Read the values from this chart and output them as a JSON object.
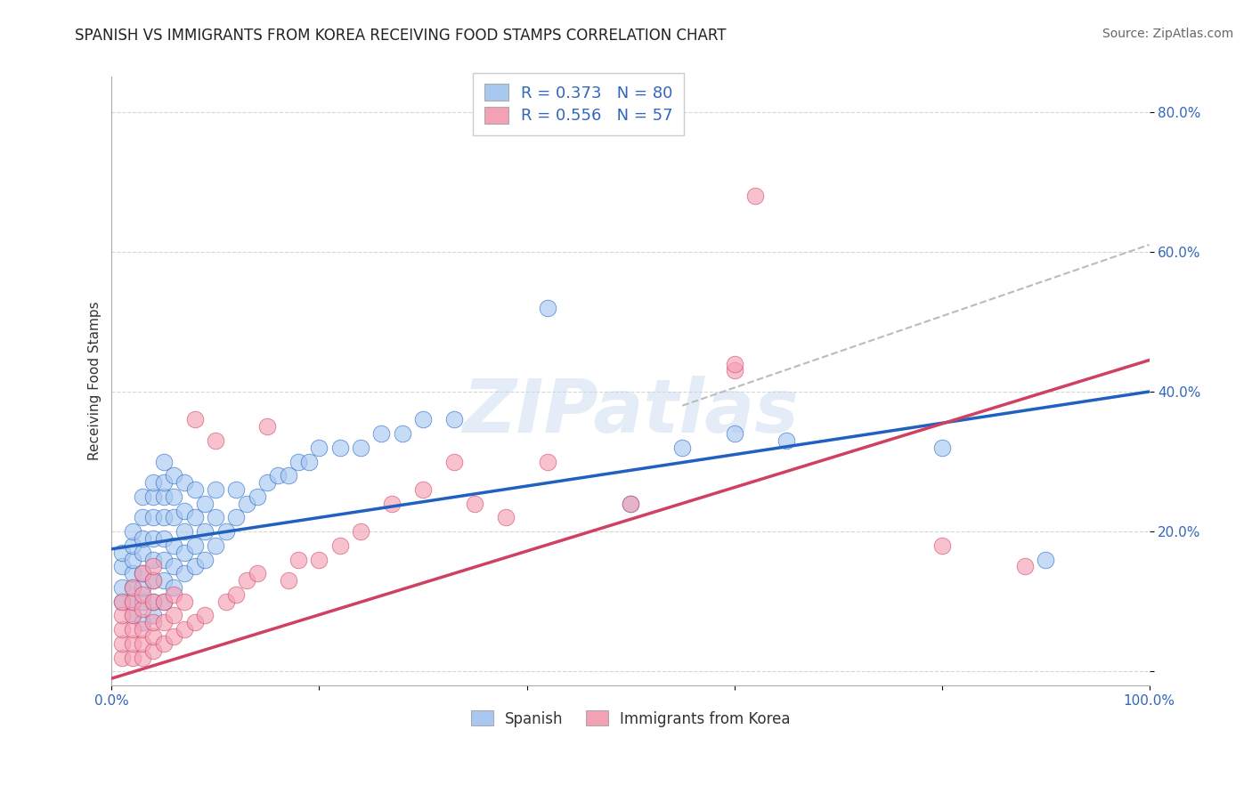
{
  "title": "SPANISH VS IMMIGRANTS FROM KOREA RECEIVING FOOD STAMPS CORRELATION CHART",
  "source": "Source: ZipAtlas.com",
  "ylabel": "Receiving Food Stamps",
  "x_min": 0.0,
  "x_max": 1.0,
  "y_min": -0.02,
  "y_max": 0.85,
  "x_ticks": [
    0.0,
    0.2,
    0.4,
    0.6,
    0.8,
    1.0
  ],
  "x_tick_labels": [
    "0.0%",
    "",
    "",
    "",
    "",
    "100.0%"
  ],
  "y_ticks": [
    0.0,
    0.2,
    0.4,
    0.6,
    0.8
  ],
  "y_tick_labels": [
    "",
    "20.0%",
    "40.0%",
    "60.0%",
    "80.0%"
  ],
  "grid_color": "#cccccc",
  "background_color": "#ffffff",
  "legend_R1": "R = 0.373",
  "legend_N1": "N = 80",
  "legend_R2": "R = 0.556",
  "legend_N2": "N = 57",
  "series1_color": "#a8c8f0",
  "series2_color": "#f4a0b5",
  "line1_color": "#2060c0",
  "line2_color": "#d04060",
  "dash_color": "#bbbbbb",
  "watermark": "ZIPatlas",
  "title_fontsize": 12,
  "label_fontsize": 11,
  "tick_fontsize": 11,
  "source_fontsize": 10,
  "blue_line_x0": 0.0,
  "blue_line_y0": 0.175,
  "blue_line_x1": 1.0,
  "blue_line_y1": 0.4,
  "pink_line_x0": 0.0,
  "pink_line_y0": -0.01,
  "pink_line_x1": 1.0,
  "pink_line_y1": 0.445,
  "dash_line_x0": 0.55,
  "dash_line_y0": 0.38,
  "dash_line_x1": 1.0,
  "dash_line_y1": 0.61,
  "spanish_x": [
    0.01,
    0.01,
    0.01,
    0.01,
    0.02,
    0.02,
    0.02,
    0.02,
    0.02,
    0.02,
    0.02,
    0.03,
    0.03,
    0.03,
    0.03,
    0.03,
    0.03,
    0.03,
    0.03,
    0.04,
    0.04,
    0.04,
    0.04,
    0.04,
    0.04,
    0.04,
    0.04,
    0.05,
    0.05,
    0.05,
    0.05,
    0.05,
    0.05,
    0.05,
    0.05,
    0.06,
    0.06,
    0.06,
    0.06,
    0.06,
    0.06,
    0.07,
    0.07,
    0.07,
    0.07,
    0.07,
    0.08,
    0.08,
    0.08,
    0.08,
    0.09,
    0.09,
    0.09,
    0.1,
    0.1,
    0.1,
    0.11,
    0.12,
    0.12,
    0.13,
    0.14,
    0.15,
    0.16,
    0.17,
    0.18,
    0.19,
    0.2,
    0.22,
    0.24,
    0.26,
    0.28,
    0.3,
    0.33,
    0.42,
    0.5,
    0.55,
    0.6,
    0.65,
    0.8,
    0.9
  ],
  "spanish_y": [
    0.1,
    0.12,
    0.15,
    0.17,
    0.08,
    0.1,
    0.12,
    0.14,
    0.16,
    0.18,
    0.2,
    0.07,
    0.1,
    0.12,
    0.14,
    0.17,
    0.19,
    0.22,
    0.25,
    0.08,
    0.1,
    0.13,
    0.16,
    0.19,
    0.22,
    0.25,
    0.27,
    0.1,
    0.13,
    0.16,
    0.19,
    0.22,
    0.25,
    0.27,
    0.3,
    0.12,
    0.15,
    0.18,
    0.22,
    0.25,
    0.28,
    0.14,
    0.17,
    0.2,
    0.23,
    0.27,
    0.15,
    0.18,
    0.22,
    0.26,
    0.16,
    0.2,
    0.24,
    0.18,
    0.22,
    0.26,
    0.2,
    0.22,
    0.26,
    0.24,
    0.25,
    0.27,
    0.28,
    0.28,
    0.3,
    0.3,
    0.32,
    0.32,
    0.32,
    0.34,
    0.34,
    0.36,
    0.36,
    0.52,
    0.24,
    0.32,
    0.34,
    0.33,
    0.32,
    0.16
  ],
  "korea_x": [
    0.01,
    0.01,
    0.01,
    0.01,
    0.01,
    0.02,
    0.02,
    0.02,
    0.02,
    0.02,
    0.02,
    0.03,
    0.03,
    0.03,
    0.03,
    0.03,
    0.03,
    0.04,
    0.04,
    0.04,
    0.04,
    0.04,
    0.04,
    0.05,
    0.05,
    0.05,
    0.06,
    0.06,
    0.06,
    0.07,
    0.07,
    0.08,
    0.08,
    0.09,
    0.1,
    0.11,
    0.12,
    0.13,
    0.14,
    0.15,
    0.17,
    0.18,
    0.2,
    0.22,
    0.24,
    0.27,
    0.3,
    0.33,
    0.35,
    0.38,
    0.42,
    0.5,
    0.6,
    0.62,
    0.8,
    0.88,
    0.6
  ],
  "korea_y": [
    0.02,
    0.04,
    0.06,
    0.08,
    0.1,
    0.02,
    0.04,
    0.06,
    0.08,
    0.1,
    0.12,
    0.02,
    0.04,
    0.06,
    0.09,
    0.11,
    0.14,
    0.03,
    0.05,
    0.07,
    0.1,
    0.13,
    0.15,
    0.04,
    0.07,
    0.1,
    0.05,
    0.08,
    0.11,
    0.06,
    0.1,
    0.07,
    0.36,
    0.08,
    0.33,
    0.1,
    0.11,
    0.13,
    0.14,
    0.35,
    0.13,
    0.16,
    0.16,
    0.18,
    0.2,
    0.24,
    0.26,
    0.3,
    0.24,
    0.22,
    0.3,
    0.24,
    0.43,
    0.68,
    0.18,
    0.15,
    0.44
  ]
}
